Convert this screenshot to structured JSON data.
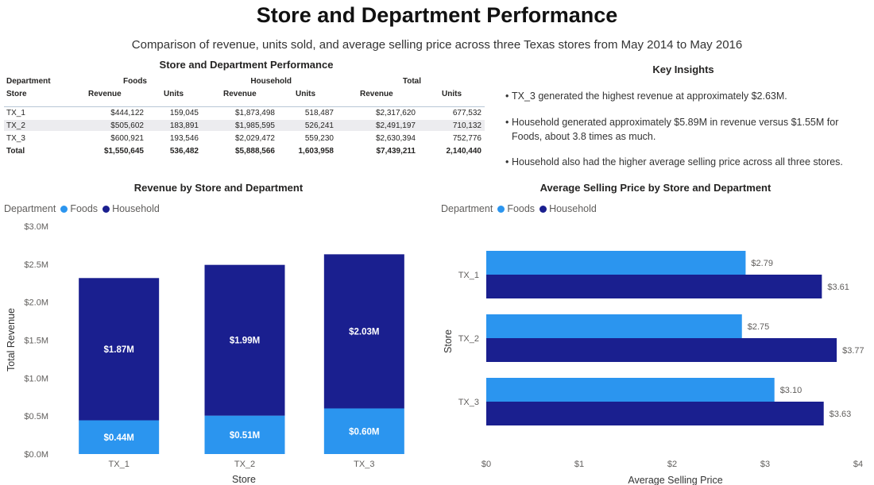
{
  "page": {
    "title": "Store and Department Performance",
    "subtitle": "Comparison of revenue, units sold, and average selling price across three Texas stores from May 2014 to May 2016"
  },
  "matrix": {
    "title": "Store and Department Performance",
    "row_header_top": "Department",
    "row_header": "Store",
    "groups": [
      "Foods",
      "Household",
      "Total"
    ],
    "sub_headers": [
      "Revenue",
      "Units",
      "Revenue",
      "Units",
      "Revenue",
      "Units"
    ],
    "rows": [
      {
        "store": "TX_1",
        "cells": [
          "$444,122",
          "159,045",
          "$1,873,498",
          "518,487",
          "$2,317,620",
          "677,532"
        ]
      },
      {
        "store": "TX_2",
        "cells": [
          "$505,602",
          "183,891",
          "$1,985,595",
          "526,241",
          "$2,491,197",
          "710,132"
        ]
      },
      {
        "store": "TX_3",
        "cells": [
          "$600,921",
          "193,546",
          "$2,029,472",
          "559,230",
          "$2,630,394",
          "752,776"
        ]
      }
    ],
    "total": {
      "store": "Total",
      "cells": [
        "$1,550,645",
        "536,482",
        "$5,888,566",
        "1,603,958",
        "$7,439,211",
        "2,140,440"
      ]
    }
  },
  "insights": {
    "title": "Key Insights",
    "items": [
      "TX_3 generated the highest revenue at approximately $2.63M.",
      "Household generated approximately $5.89M in revenue versus $1.55M for Foods, about 3.8 times as much.",
      "Household also had the higher average selling price across all three stores."
    ]
  },
  "colors": {
    "foods": "#2b95ef",
    "household": "#1a1f8f"
  },
  "legend": {
    "label": "Department",
    "items": [
      "Foods",
      "Household"
    ]
  },
  "chart_data": [
    {
      "type": "bar",
      "stacked": true,
      "orientation": "vertical",
      "title": "Revenue by Store and Department",
      "xlabel": "Store",
      "ylabel": "Total Revenue",
      "categories": [
        "TX_1",
        "TX_2",
        "TX_3"
      ],
      "ylim": [
        0,
        3000000
      ],
      "yticks": [
        0,
        500000,
        1000000,
        1500000,
        2000000,
        2500000,
        3000000
      ],
      "ytick_labels": [
        "$0.0M",
        "$0.5M",
        "$1.0M",
        "$1.5M",
        "$2.0M",
        "$2.5M",
        "$3.0M"
      ],
      "series": [
        {
          "name": "Foods",
          "values": [
            444122,
            505602,
            600921
          ],
          "labels": [
            "$0.44M",
            "$0.51M",
            "$0.60M"
          ]
        },
        {
          "name": "Household",
          "values": [
            1873498,
            1985595,
            2029472
          ],
          "labels": [
            "$1.87M",
            "$1.99M",
            "$2.03M"
          ]
        }
      ]
    },
    {
      "type": "bar",
      "stacked": false,
      "orientation": "horizontal",
      "title": "Average Selling Price by Store and Department",
      "xlabel": "Average Selling Price",
      "ylabel": "Store",
      "categories": [
        "TX_1",
        "TX_2",
        "TX_3"
      ],
      "xlim": [
        0,
        4
      ],
      "xticks": [
        0,
        1,
        2,
        3,
        4
      ],
      "xtick_labels": [
        "$0",
        "$1",
        "$2",
        "$3",
        "$4"
      ],
      "series": [
        {
          "name": "Foods",
          "values": [
            2.79,
            2.75,
            3.1
          ],
          "labels": [
            "$2.79",
            "$2.75",
            "$3.10"
          ]
        },
        {
          "name": "Household",
          "values": [
            3.61,
            3.77,
            3.63
          ],
          "labels": [
            "$3.61",
            "$3.77",
            "$3.63"
          ]
        }
      ]
    }
  ]
}
